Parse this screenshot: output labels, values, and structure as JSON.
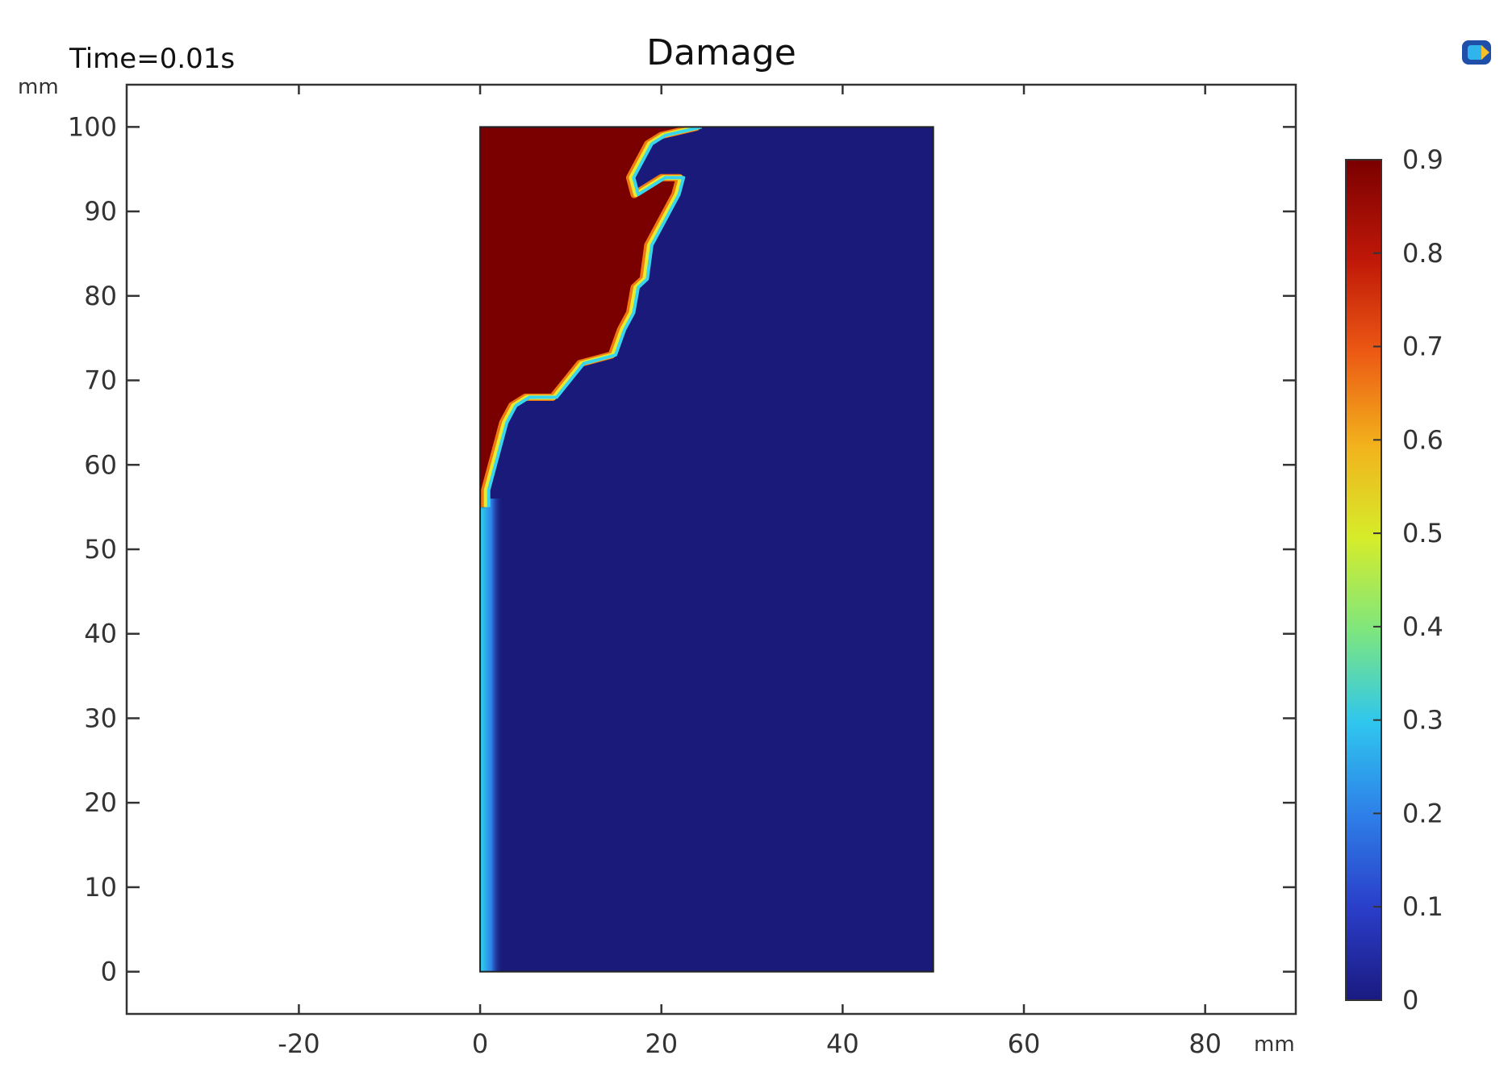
{
  "header": {
    "time_label": "Time=0.01s",
    "title": "Damage"
  },
  "chart_data": {
    "type": "heatmap",
    "title": "Damage",
    "xunit": "mm",
    "yunit": "mm",
    "xlim": [
      -39,
      90
    ],
    "ylim": [
      -5,
      105
    ],
    "xticks": [
      -20,
      0,
      20,
      40,
      60,
      80
    ],
    "yticks": [
      0,
      10,
      20,
      30,
      40,
      50,
      60,
      70,
      80,
      90,
      100
    ],
    "domain": {
      "x": [
        0,
        50
      ],
      "y": [
        0,
        100
      ]
    },
    "background_value": 0,
    "damaged_value": 0.9,
    "damage_front": [
      [
        0.5,
        55
      ],
      [
        0.5,
        57
      ],
      [
        1,
        59
      ],
      [
        1.5,
        61
      ],
      [
        2,
        63
      ],
      [
        2.5,
        65
      ],
      [
        3.5,
        67
      ],
      [
        5,
        68
      ],
      [
        8,
        68
      ],
      [
        9.5,
        70
      ],
      [
        11,
        72
      ],
      [
        14.5,
        73
      ],
      [
        15.5,
        76
      ],
      [
        16.5,
        78
      ],
      [
        17,
        81
      ],
      [
        18,
        82
      ],
      [
        18.5,
        86
      ],
      [
        19.5,
        88
      ],
      [
        20.5,
        90
      ],
      [
        21.5,
        92
      ],
      [
        22,
        94
      ],
      [
        20,
        94
      ],
      [
        18.5,
        93
      ],
      [
        17,
        92
      ],
      [
        16.5,
        94
      ],
      [
        17.5,
        96
      ],
      [
        18.5,
        98
      ],
      [
        20,
        99
      ],
      [
        22,
        99.5
      ],
      [
        24,
        100
      ]
    ],
    "colorbar": {
      "min": 0,
      "max": 0.9,
      "ticks": [
        0,
        0.1,
        0.2,
        0.3,
        0.4,
        0.5,
        0.6,
        0.7,
        0.8,
        0.9
      ],
      "colormap": [
        "#1a1a80",
        "#2a3ec9",
        "#2e7fe8",
        "#2fc6ee",
        "#7ee67e",
        "#d6ec2a",
        "#f2b21c",
        "#ec5a14",
        "#c01808",
        "#7a0000"
      ]
    }
  },
  "colors": {
    "low": "#1a1a7a",
    "high": "#7a0000",
    "axis": "#333333"
  },
  "icons": {
    "corner": "comsol-logo-icon"
  }
}
